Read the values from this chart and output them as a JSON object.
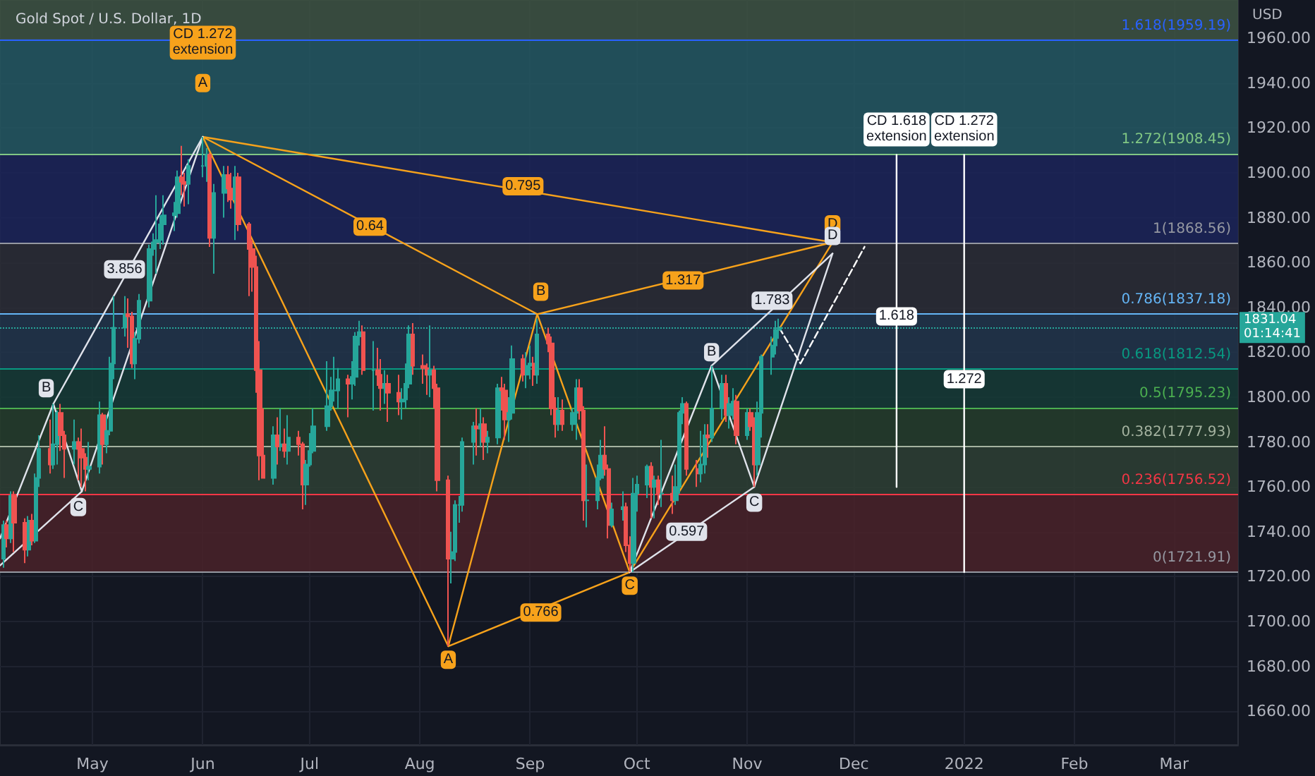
{
  "chart_data": {
    "type": "candlestick",
    "title": "Gold Spot / U.S. Dollar, 1D",
    "ylabel": "USD",
    "x": [
      "2021-04-06",
      "2021-04-07",
      "2021-04-08",
      "2021-04-09",
      "2021-04-12",
      "2021-04-13",
      "2021-04-14",
      "2021-04-15",
      "2021-04-16",
      "2021-04-19",
      "2021-04-20",
      "2021-04-21",
      "2021-04-22",
      "2021-04-23",
      "2021-04-26",
      "2021-04-27",
      "2021-04-28",
      "2021-04-29",
      "2021-04-30",
      "2021-05-03",
      "2021-05-04",
      "2021-05-05",
      "2021-05-06",
      "2021-05-07",
      "2021-05-10",
      "2021-05-11",
      "2021-05-12",
      "2021-05-13",
      "2021-05-14",
      "2021-05-17",
      "2021-05-18",
      "2021-05-19",
      "2021-05-20",
      "2021-05-21",
      "2021-05-24",
      "2021-05-25",
      "2021-05-26",
      "2021-05-27",
      "2021-05-28",
      "2021-06-01",
      "2021-06-02",
      "2021-06-03",
      "2021-06-04",
      "2021-06-07",
      "2021-06-08",
      "2021-06-09",
      "2021-06-10",
      "2021-06-11",
      "2021-06-14",
      "2021-06-15",
      "2021-06-16",
      "2021-06-17",
      "2021-06-18",
      "2021-06-21",
      "2021-06-22",
      "2021-06-23",
      "2021-06-24",
      "2021-06-25",
      "2021-06-28",
      "2021-06-29",
      "2021-06-30",
      "2021-07-01",
      "2021-07-02",
      "2021-07-06",
      "2021-07-07",
      "2021-07-08",
      "2021-07-09",
      "2021-07-12",
      "2021-07-13",
      "2021-07-14",
      "2021-07-15",
      "2021-07-16",
      "2021-07-19",
      "2021-07-20",
      "2021-07-21",
      "2021-07-22",
      "2021-07-23",
      "2021-07-26",
      "2021-07-27",
      "2021-07-28",
      "2021-07-29",
      "2021-07-30",
      "2021-08-02",
      "2021-08-03",
      "2021-08-04",
      "2021-08-05",
      "2021-08-06",
      "2021-08-09",
      "2021-08-10",
      "2021-08-11",
      "2021-08-12",
      "2021-08-13",
      "2021-08-16",
      "2021-08-17",
      "2021-08-18",
      "2021-08-19",
      "2021-08-20",
      "2021-08-23",
      "2021-08-24",
      "2021-08-25",
      "2021-08-26",
      "2021-08-27",
      "2021-08-30",
      "2021-08-31",
      "2021-09-01",
      "2021-09-02",
      "2021-09-03",
      "2021-09-06",
      "2021-09-07",
      "2021-09-08",
      "2021-09-09",
      "2021-09-10",
      "2021-09-13",
      "2021-09-14",
      "2021-09-15",
      "2021-09-16",
      "2021-09-17",
      "2021-09-20",
      "2021-09-21",
      "2021-09-22",
      "2021-09-23",
      "2021-09-24",
      "2021-09-27",
      "2021-09-28",
      "2021-09-29",
      "2021-09-30",
      "2021-10-01",
      "2021-10-04",
      "2021-10-05",
      "2021-10-06",
      "2021-10-07",
      "2021-10-08",
      "2021-10-11",
      "2021-10-12",
      "2021-10-13",
      "2021-10-14",
      "2021-10-15",
      "2021-10-18",
      "2021-10-19",
      "2021-10-20",
      "2021-10-21",
      "2021-10-22",
      "2021-10-25",
      "2021-10-26",
      "2021-10-27",
      "2021-10-28",
      "2021-10-29",
      "2021-11-01",
      "2021-11-02",
      "2021-11-03",
      "2021-11-04",
      "2021-11-05",
      "2021-11-08",
      "2021-11-09",
      "2021-11-10"
    ],
    "ohlc": [
      [
        1728,
        1745,
        1724,
        1743
      ],
      [
        1743,
        1745,
        1733,
        1737
      ],
      [
        1737,
        1758,
        1735,
        1756
      ],
      [
        1756,
        1758,
        1731,
        1744
      ],
      [
        1744,
        1746,
        1726,
        1732
      ],
      [
        1732,
        1747,
        1729,
        1745
      ],
      [
        1745,
        1748,
        1734,
        1736
      ],
      [
        1736,
        1766,
        1735,
        1764
      ],
      [
        1764,
        1783,
        1760,
        1777
      ],
      [
        1777,
        1790,
        1766,
        1770
      ],
      [
        1770,
        1797,
        1768,
        1779
      ],
      [
        1779,
        1794,
        1770,
        1793
      ],
      [
        1793,
        1797,
        1776,
        1783
      ],
      [
        1783,
        1785,
        1764,
        1777
      ],
      [
        1777,
        1790,
        1770,
        1780
      ],
      [
        1780,
        1782,
        1763,
        1777
      ],
      [
        1777,
        1786,
        1760,
        1773
      ],
      [
        1773,
        1775,
        1758,
        1768
      ],
      [
        1768,
        1780,
        1763,
        1769
      ],
      [
        1769,
        1798,
        1766,
        1792
      ],
      [
        1792,
        1793,
        1770,
        1779
      ],
      [
        1779,
        1792,
        1775,
        1785
      ],
      [
        1785,
        1818,
        1783,
        1815
      ],
      [
        1815,
        1845,
        1808,
        1831
      ],
      [
        1831,
        1845,
        1827,
        1837
      ],
      [
        1837,
        1844,
        1822,
        1836
      ],
      [
        1836,
        1838,
        1813,
        1815
      ],
      [
        1815,
        1829,
        1808,
        1826
      ],
      [
        1826,
        1846,
        1824,
        1843
      ],
      [
        1843,
        1868,
        1840,
        1866
      ],
      [
        1866,
        1873,
        1863,
        1869
      ],
      [
        1869,
        1890,
        1855,
        1870
      ],
      [
        1870,
        1881,
        1866,
        1877
      ],
      [
        1877,
        1890,
        1868,
        1881
      ],
      [
        1881,
        1887,
        1874,
        1882
      ],
      [
        1882,
        1901,
        1880,
        1898
      ],
      [
        1898,
        1912,
        1890,
        1896
      ],
      [
        1896,
        1900,
        1885,
        1895
      ],
      [
        1895,
        1906,
        1886,
        1903
      ],
      [
        1903,
        1916,
        1898,
        1903
      ],
      [
        1903,
        1911,
        1896,
        1908
      ],
      [
        1908,
        1909,
        1867,
        1871
      ],
      [
        1871,
        1895,
        1855,
        1891
      ],
      [
        1891,
        1903,
        1880,
        1899
      ],
      [
        1899,
        1903,
        1887,
        1893
      ],
      [
        1893,
        1900,
        1884,
        1888
      ],
      [
        1888,
        1903,
        1870,
        1898
      ],
      [
        1898,
        1900,
        1874,
        1877
      ],
      [
        1877,
        1878,
        1845,
        1866
      ],
      [
        1866,
        1870,
        1847,
        1858
      ],
      [
        1858,
        1863,
        1802,
        1812
      ],
      [
        1812,
        1825,
        1763,
        1774
      ],
      [
        1774,
        1795,
        1764,
        1764
      ],
      [
        1764,
        1787,
        1761,
        1783
      ],
      [
        1783,
        1791,
        1770,
        1778
      ],
      [
        1778,
        1795,
        1776,
        1779
      ],
      [
        1779,
        1786,
        1773,
        1776
      ],
      [
        1776,
        1792,
        1770,
        1782
      ],
      [
        1782,
        1785,
        1774,
        1779
      ],
      [
        1779,
        1780,
        1750,
        1761
      ],
      [
        1761,
        1772,
        1752,
        1770
      ],
      [
        1770,
        1784,
        1769,
        1776
      ],
      [
        1776,
        1795,
        1775,
        1787
      ],
      [
        1787,
        1816,
        1785,
        1796
      ],
      [
        1796,
        1809,
        1794,
        1803
      ],
      [
        1803,
        1818,
        1798,
        1803
      ],
      [
        1803,
        1813,
        1795,
        1808
      ],
      [
        1808,
        1810,
        1791,
        1806
      ],
      [
        1806,
        1816,
        1799,
        1809
      ],
      [
        1809,
        1829,
        1805,
        1827
      ],
      [
        1827,
        1834,
        1823,
        1829
      ],
      [
        1829,
        1832,
        1810,
        1812
      ],
      [
        1812,
        1825,
        1794,
        1812
      ],
      [
        1812,
        1822,
        1805,
        1810
      ],
      [
        1810,
        1817,
        1794,
        1804
      ],
      [
        1804,
        1812,
        1797,
        1806
      ],
      [
        1806,
        1810,
        1789,
        1802
      ],
      [
        1802,
        1810,
        1792,
        1798
      ],
      [
        1798,
        1804,
        1790,
        1799
      ],
      [
        1799,
        1815,
        1795,
        1806
      ],
      [
        1806,
        1832,
        1804,
        1828
      ],
      [
        1828,
        1833,
        1810,
        1814
      ],
      [
        1814,
        1819,
        1806,
        1813
      ],
      [
        1813,
        1815,
        1801,
        1810
      ],
      [
        1810,
        1832,
        1800,
        1812
      ],
      [
        1812,
        1814,
        1795,
        1804
      ],
      [
        1804,
        1806,
        1758,
        1763
      ],
      [
        1763,
        1765,
        1689,
        1728
      ],
      [
        1728,
        1740,
        1717,
        1731
      ],
      [
        1731,
        1754,
        1727,
        1752
      ],
      [
        1752,
        1756,
        1744,
        1752
      ],
      [
        1752,
        1782,
        1749,
        1780
      ],
      [
        1780,
        1789,
        1770,
        1787
      ],
      [
        1787,
        1795,
        1774,
        1786
      ],
      [
        1786,
        1795,
        1778,
        1788
      ],
      [
        1788,
        1791,
        1772,
        1780
      ],
      [
        1780,
        1785,
        1775,
        1782
      ],
      [
        1782,
        1806,
        1779,
        1804
      ],
      [
        1804,
        1809,
        1794,
        1803
      ],
      [
        1803,
        1806,
        1781,
        1790
      ],
      [
        1790,
        1800,
        1780,
        1793
      ],
      [
        1793,
        1823,
        1790,
        1817
      ],
      [
        1817,
        1819,
        1807,
        1810
      ],
      [
        1810,
        1820,
        1804,
        1814
      ],
      [
        1814,
        1823,
        1808,
        1815
      ],
      [
        1815,
        1818,
        1805,
        1810
      ],
      [
        1810,
        1835,
        1806,
        1828
      ],
      [
        1828,
        1831,
        1820,
        1824
      ],
      [
        1824,
        1827,
        1792,
        1795
      ],
      [
        1795,
        1800,
        1782,
        1788
      ],
      [
        1788,
        1800,
        1785,
        1794
      ],
      [
        1794,
        1799,
        1785,
        1788
      ],
      [
        1788,
        1795,
        1785,
        1793
      ],
      [
        1793,
        1808,
        1781,
        1804
      ],
      [
        1804,
        1808,
        1790,
        1794
      ],
      [
        1794,
        1796,
        1745,
        1754
      ],
      [
        1754,
        1770,
        1742,
        1754
      ],
      [
        1754,
        1770,
        1750,
        1764
      ],
      [
        1764,
        1781,
        1763,
        1774
      ],
      [
        1774,
        1787,
        1765,
        1768
      ],
      [
        1768,
        1770,
        1737,
        1743
      ],
      [
        1743,
        1753,
        1742,
        1750
      ],
      [
        1750,
        1758,
        1745,
        1751
      ],
      [
        1751,
        1753,
        1731,
        1734
      ],
      [
        1734,
        1738,
        1722,
        1726
      ],
      [
        1726,
        1764,
        1722,
        1757
      ],
      [
        1757,
        1765,
        1749,
        1761
      ],
      [
        1761,
        1770,
        1755,
        1769
      ],
      [
        1769,
        1771,
        1746,
        1760
      ],
      [
        1760,
        1765,
        1746,
        1763
      ],
      [
        1763,
        1765,
        1752,
        1757
      ],
      [
        1757,
        1781,
        1751,
        1757
      ],
      [
        1757,
        1765,
        1748,
        1754
      ],
      [
        1754,
        1770,
        1752,
        1760
      ],
      [
        1760,
        1794,
        1757,
        1793
      ],
      [
        1793,
        1800,
        1788,
        1797
      ],
      [
        1797,
        1798,
        1765,
        1768
      ],
      [
        1768,
        1772,
        1760,
        1766
      ],
      [
        1766,
        1785,
        1762,
        1770
      ],
      [
        1770,
        1788,
        1766,
        1783
      ],
      [
        1783,
        1788,
        1773,
        1782
      ],
      [
        1782,
        1814,
        1780,
        1795
      ],
      [
        1795,
        1810,
        1790,
        1806
      ],
      [
        1806,
        1810,
        1789,
        1792
      ],
      [
        1792,
        1800,
        1786,
        1797
      ],
      [
        1797,
        1804,
        1790,
        1798
      ],
      [
        1798,
        1801,
        1779,
        1783
      ],
      [
        1783,
        1795,
        1781,
        1793
      ],
      [
        1793,
        1795,
        1785,
        1787
      ],
      [
        1787,
        1791,
        1760,
        1770
      ],
      [
        1770,
        1798,
        1765,
        1793
      ],
      [
        1793,
        1819,
        1782,
        1818
      ],
      [
        1818,
        1827,
        1810,
        1823
      ],
      [
        1823,
        1834,
        1819,
        1830
      ],
      [
        1830,
        1835,
        1826,
        1831
      ]
    ],
    "series": [
      {
        "type": "line",
        "color": "#f7a21b",
        "x": [
          "2021-06-01",
          "2021-08-09",
          "2021-09-03",
          "2021-09-29",
          "2021-11-25"
        ],
        "values": [
          1916,
          1689,
          1837,
          1722,
          1869
        ]
      },
      {
        "type": "line",
        "color": "#f7a21b",
        "x": [
          "2021-06-01",
          "2021-09-03"
        ],
        "values": [
          1916,
          1837
        ]
      },
      {
        "type": "line",
        "color": "#f7a21b",
        "x": [
          "2021-08-09",
          "2021-09-29"
        ],
        "values": [
          1689,
          1722
        ]
      },
      {
        "type": "line",
        "color": "#f7a21b",
        "x": [
          "2021-09-03",
          "2021-11-25"
        ],
        "values": [
          1837,
          1869
        ]
      },
      {
        "type": "line",
        "color": "#f7a21b",
        "x": [
          "2021-06-01",
          "2021-11-25"
        ],
        "values": [
          1916,
          1869
        ]
      },
      {
        "type": "line",
        "color": "#e0e3eb",
        "x": [
          "2021-04-05",
          "2021-04-20",
          "2021-04-28",
          "2021-06-01"
        ],
        "values": [
          1737,
          1797,
          1758,
          1916
        ]
      },
      {
        "type": "line",
        "color": "#e0e3eb",
        "x": [
          "2021-04-20",
          "2021-06-01"
        ],
        "values": [
          1797,
          1916
        ]
      },
      {
        "type": "line",
        "color": "#e0e3eb",
        "x": [
          "2021-04-05",
          "2021-04-28"
        ],
        "values": [
          1725,
          1758
        ]
      },
      {
        "type": "line",
        "color": "#e0e3eb",
        "x": [
          "2021-09-29",
          "2021-10-22",
          "2021-11-03",
          "2021-11-25"
        ],
        "values": [
          1722,
          1814,
          1760,
          1864
        ]
      },
      {
        "type": "line",
        "color": "#e0e3eb",
        "x": [
          "2021-09-29",
          "2021-11-03"
        ],
        "values": [
          1722,
          1760
        ]
      },
      {
        "type": "line",
        "color": "#e0e3eb",
        "x": [
          "2021-10-22",
          "2021-11-25"
        ],
        "values": [
          1814,
          1864
        ]
      },
      {
        "type": "line",
        "color": "#ffffff",
        "line_style": "dashed",
        "x": [
          "2021-11-10",
          "2021-11-16",
          "2021-12-04"
        ],
        "values": [
          1831,
          1815,
          1867
        ]
      },
      {
        "type": "line",
        "color": "#ffffff",
        "x": [
          "2021-12-13",
          "2021-12-13"
        ],
        "values": [
          1760,
          1908
        ]
      },
      {
        "type": "line",
        "color": "#ffffff",
        "x": [
          "2022-01-01",
          "2022-01-01"
        ],
        "values": [
          1722,
          1908
        ]
      }
    ],
    "annotations": [
      {
        "text": "CD 1.272\nextension",
        "x": "2021-06-01",
        "y": 1958
      },
      {
        "text": "A",
        "x": "2021-06-01",
        "y": 1940
      },
      {
        "text": "3.856",
        "x": "2021-05-10",
        "y": 1857
      },
      {
        "text": "B",
        "x": "2021-04-18",
        "y": 1804
      },
      {
        "text": "C",
        "x": "2021-04-27",
        "y": 1751
      },
      {
        "text": "0.64",
        "x": "2021-07-18",
        "y": 1876
      },
      {
        "text": "0.795",
        "x": "2021-08-30",
        "y": 1894
      },
      {
        "text": "B",
        "x": "2021-09-04",
        "y": 1847
      },
      {
        "text": "A",
        "x": "2021-08-09",
        "y": 1683
      },
      {
        "text": "0.766",
        "x": "2021-09-04",
        "y": 1704
      },
      {
        "text": "C",
        "x": "2021-09-29",
        "y": 1716
      },
      {
        "text": "0.597",
        "x": "2021-10-15",
        "y": 1740
      },
      {
        "text": "C",
        "x": "2021-11-03",
        "y": 1753
      },
      {
        "text": "B",
        "x": "2021-10-22",
        "y": 1820
      },
      {
        "text": "1.783",
        "x": "2021-11-08",
        "y": 1843
      },
      {
        "text": "1.317",
        "x": "2021-10-14",
        "y": 1852
      },
      {
        "text": "D",
        "x": "2021-11-25",
        "y": 1877
      },
      {
        "text": "D",
        "x": "2021-11-25",
        "y": 1864
      },
      {
        "text": "CD 1.618\nextension",
        "x": "2021-12-13",
        "y": 1908
      },
      {
        "text": "CD 1.272\nextension",
        "x": "2022-01-01",
        "y": 1908
      },
      {
        "text": "1.618",
        "x": "2021-12-13",
        "y": 1836
      },
      {
        "text": "1.272",
        "x": "2022-01-01",
        "y": 1808
      }
    ],
    "bands": [
      {
        "axis": "y",
        "from": 1721.91,
        "to": 1756.52,
        "color": "#4a2229"
      },
      {
        "axis": "y",
        "from": 1756.52,
        "to": 1777.93,
        "color": "#2e4034"
      },
      {
        "axis": "y",
        "from": 1777.93,
        "to": 1795.23,
        "color": "#263d2c"
      },
      {
        "axis": "y",
        "from": 1795.23,
        "to": 1812.54,
        "color": "#163b36"
      },
      {
        "axis": "y",
        "from": 1812.54,
        "to": 1837.18,
        "color": "#22354b"
      },
      {
        "axis": "y",
        "from": 1837.18,
        "to": 1868.56,
        "color": "#2b2d36"
      },
      {
        "axis": "y",
        "from": 1868.56,
        "to": 1908.45,
        "color": "#1c2459"
      },
      {
        "axis": "y",
        "from": 1908.45,
        "to": 1959.19,
        "color": "#245863"
      },
      {
        "axis": "y",
        "from": 1959.19,
        "to": 1977,
        "color": "#3e5443"
      }
    ],
    "ref_lines": [
      {
        "axis": "y",
        "value": 1721.91,
        "label": "0(1721.91)",
        "color": "#9598a1"
      },
      {
        "axis": "y",
        "value": 1756.52,
        "label": "0.236(1756.52)",
        "color": "#f23645"
      },
      {
        "axis": "y",
        "value": 1777.93,
        "label": "0.382(1777.93)",
        "color": "#a5b3a0"
      },
      {
        "axis": "y",
        "value": 1795.23,
        "label": "0.5(1795.23)",
        "color": "#4caf50"
      },
      {
        "axis": "y",
        "value": 1812.54,
        "label": "0.618(1812.54)",
        "color": "#089981"
      },
      {
        "axis": "y",
        "value": 1831.04,
        "label": "1831.04\n01:14:41",
        "color": "#26a69a",
        "line_style": "dotted"
      },
      {
        "axis": "y",
        "value": 1837.18,
        "label": "0.786(1837.18)",
        "color": "#64b5f6"
      },
      {
        "axis": "y",
        "value": 1868.56,
        "label": "1(1868.56)",
        "color": "#9598a1"
      },
      {
        "axis": "y",
        "value": 1908.45,
        "label": "1.272(1908.45)",
        "color": "#81c784"
      },
      {
        "axis": "y",
        "value": 1959.19,
        "label": "1.618(1959.19)",
        "color": "#2962ff"
      }
    ],
    "xlim": [
      "2021-04-05",
      "2022-03-19"
    ],
    "xticks": [
      {
        "value": "2021-05-01",
        "label": "May"
      },
      {
        "value": "2021-06-01",
        "label": "Jun"
      },
      {
        "value": "2021-07-01",
        "label": "Jul"
      },
      {
        "value": "2021-08-01",
        "label": "Aug"
      },
      {
        "value": "2021-09-01",
        "label": "Sep"
      },
      {
        "value": "2021-10-01",
        "label": "Oct"
      },
      {
        "value": "2021-11-01",
        "label": "Nov"
      },
      {
        "value": "2021-12-01",
        "label": "Dec"
      },
      {
        "value": "2022-01-01",
        "label": "2022"
      },
      {
        "value": "2022-02-01",
        "label": "Feb"
      },
      {
        "value": "2022-03-01",
        "label": "Mar"
      }
    ],
    "ylim": [
      1645,
      1977
    ],
    "yticks": [
      {
        "value": 1660,
        "label": "1660.00"
      },
      {
        "value": 1680,
        "label": "1680.00"
      },
      {
        "value": 1700,
        "label": "1700.00"
      },
      {
        "value": 1720,
        "label": "1720.00"
      },
      {
        "value": 1740,
        "label": "1740.00"
      },
      {
        "value": 1760,
        "label": "1760.00"
      },
      {
        "value": 1780,
        "label": "1780.00"
      },
      {
        "value": 1800,
        "label": "1800.00"
      },
      {
        "value": 1820,
        "label": "1820.00"
      },
      {
        "value": 1840,
        "label": "1840.00"
      },
      {
        "value": 1860,
        "label": "1860.00"
      },
      {
        "value": 1880,
        "label": "1880.00"
      },
      {
        "value": 1900,
        "label": "1900.00"
      },
      {
        "value": 1920,
        "label": "1920.00"
      },
      {
        "value": 1940,
        "label": "1940.00"
      },
      {
        "value": 1960,
        "label": "1960.00"
      }
    ],
    "grid": true
  }
}
